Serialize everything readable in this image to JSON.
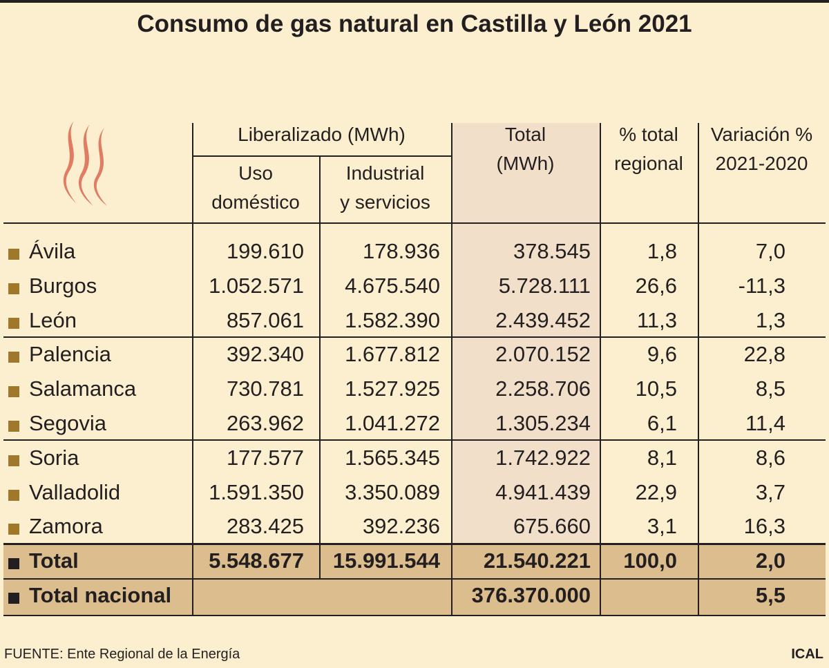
{
  "header": {
    "title": "Consumo de gas natural en Castilla y León 2021"
  },
  "table": {
    "group_header": "Liberalizado (MWh)",
    "columns": [
      [
        "Uso",
        "doméstico"
      ],
      [
        "Industrial",
        "y servicios"
      ],
      [
        "Total",
        "(MWh)"
      ],
      [
        "% total",
        "regional"
      ],
      [
        "Variación %",
        "2021-2020"
      ]
    ],
    "rows": [
      [
        "Ávila",
        "199.610",
        "178.936",
        "378.545",
        "1,8",
        "7,0"
      ],
      [
        "Burgos",
        "1.052.571",
        "4.675.540",
        "5.728.111",
        "26,6",
        "-11,3"
      ],
      [
        "León",
        "857.061",
        "1.582.390",
        "2.439.452",
        "11,3",
        "1,3"
      ],
      [
        "Palencia",
        "392.340",
        "1.677.812",
        "2.070.152",
        "9,6",
        "22,8"
      ],
      [
        "Salamanca",
        "730.781",
        "1.527.925",
        "2.258.706",
        "10,5",
        "8,5"
      ],
      [
        "Segovia",
        "263.962",
        "1.041.272",
        "1.305.234",
        "6,1",
        "11,4"
      ],
      [
        "Soria",
        "177.577",
        "1.565.345",
        "1.742.922",
        "8,1",
        "8,6"
      ],
      [
        "Valladolid",
        "1.591.350",
        "3.350.089",
        "4.941.439",
        "22,9",
        "3,7"
      ],
      [
        "Zamora",
        "283.425",
        "392.236",
        "675.660",
        "3,1",
        "16,3"
      ]
    ],
    "total": [
      "Total",
      "5.548.677",
      "15.991.544",
      "21.540.221",
      "100,0",
      "2,0"
    ],
    "national": {
      "label": "Total nacional",
      "total": "376.370.000",
      "variation": "5,5"
    }
  },
  "footer": {
    "source": "FUENTE: Ente Regional de la Energía",
    "credit": "ICAL"
  }
}
